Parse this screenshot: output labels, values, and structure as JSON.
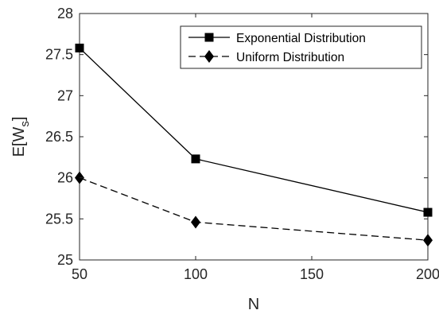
{
  "chart_data": {
    "type": "line",
    "x": [
      50,
      100,
      200
    ],
    "x_tick_labels": [
      "50",
      "100",
      "150",
      "200"
    ],
    "xlabel": "N",
    "ylabel_main": "E[W",
    "ylabel_sub": "s",
    "ylabel_close": "]",
    "ylim": [
      25,
      28
    ],
    "y_ticks": [
      25,
      25.5,
      26,
      26.5,
      27,
      27.5,
      28
    ],
    "y_tick_labels": [
      "25",
      "25.5",
      "26",
      "26.5",
      "27",
      "27.5",
      "28"
    ],
    "grid": false,
    "legend_position": "top-right",
    "series": [
      {
        "name": "Exponential Distribution",
        "values": [
          27.58,
          26.23,
          25.58
        ],
        "marker": "square",
        "line_style": "solid",
        "color": "#000000"
      },
      {
        "name": "Uniform Distribution",
        "values": [
          26.0,
          25.46,
          25.24
        ],
        "marker": "diamond",
        "line_style": "dashed",
        "color": "#000000"
      }
    ]
  }
}
